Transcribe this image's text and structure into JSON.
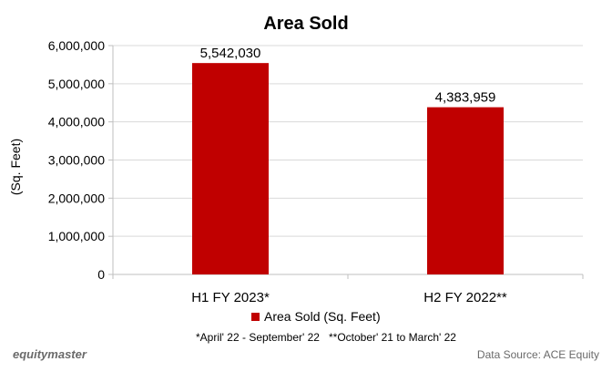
{
  "chart_data": {
    "type": "bar",
    "title": "Area Sold",
    "ylabel": "(Sq. Feet)",
    "xlabel": "",
    "categories": [
      "H1 FY 2023*",
      "H2 FY 2022**"
    ],
    "series": [
      {
        "name": "Area Sold (Sq. Feet)",
        "values": [
          5542030,
          4383959
        ],
        "color": "#c00000"
      }
    ],
    "data_labels": [
      "5,542,030",
      "4,383,959"
    ],
    "ylim": [
      0,
      6000000
    ],
    "yticks": [
      0,
      1000000,
      2000000,
      3000000,
      4000000,
      5000000,
      6000000
    ],
    "ytick_labels": [
      "0",
      "1,000,000",
      "2,000,000",
      "3,000,000",
      "4,000,000",
      "5,000,000",
      "6,000,000"
    ],
    "grid": true,
    "legend_position": "bottom"
  },
  "footnote": "*April' 22 - September' 22   **October' 21 to March' 22",
  "brand": "equitymaster",
  "source": "Data Source: ACE Equity",
  "colors": {
    "bar": "#c00000",
    "grid": "#d9d9d9",
    "axis": "#bfbfbf",
    "text": "#000000",
    "muted": "#6a6a6a"
  }
}
